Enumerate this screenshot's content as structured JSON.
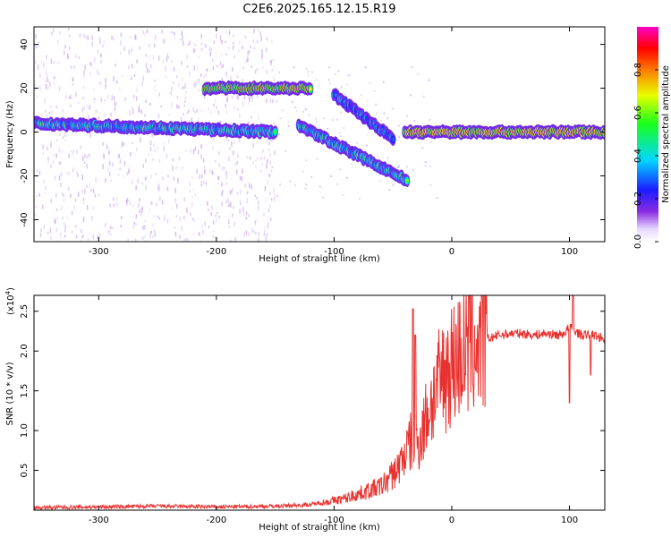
{
  "title": "C2E6.2025.165.12.15.R19",
  "colors": {
    "snr_line": "#e8322f",
    "axis": "#000000",
    "spectrogram_core_dark": "#3a00a8",
    "spectrogram_background_speckle": "#c8a6f0"
  },
  "chart_data": [
    {
      "type": "heatmap",
      "title": "C2E6.2025.165.12.15.R19",
      "xlabel": "Height of straight line (km)",
      "ylabel": "Frequency (Hz)",
      "xlim": [
        -355,
        130
      ],
      "ylim": [
        -50,
        48
      ],
      "xticks": [
        -300,
        -200,
        -100,
        0,
        100
      ],
      "yticks": [
        -40,
        -20,
        0,
        20,
        40
      ],
      "colorbar": {
        "label": "Normalized spectral amplitude",
        "range": [
          0.0,
          1.0
        ],
        "ticks": [
          0.0,
          0.2,
          0.4,
          0.6,
          0.8
        ],
        "colormap": "rainbow (white-violet-blue-cyan-green-yellow-red-magenta)"
      },
      "features": [
        {
          "name": "main carrier",
          "x_range": [
            -355,
            -150
          ],
          "freq": [
            4,
            0
          ],
          "amplitude": 0.5
        },
        {
          "name": "tone ~20 Hz",
          "x_range": [
            -210,
            -120
          ],
          "freq": [
            20,
            20
          ],
          "amplitude": 0.8
        },
        {
          "name": "descending branch",
          "x_range": [
            -130,
            -38
          ],
          "freq": [
            3,
            -22
          ],
          "amplitude": 0.5
        },
        {
          "name": "upper descending branch",
          "x_range": [
            -100,
            -50
          ],
          "freq": [
            17,
            -3
          ],
          "amplitude": 0.4
        },
        {
          "name": "near-zero carrier",
          "x_range": [
            -40,
            130
          ],
          "freq": [
            0,
            0
          ],
          "amplitude": 0.9
        }
      ],
      "grid": false
    },
    {
      "type": "line",
      "xlabel": "Height of straight line (km)",
      "ylabel": "SNR (10 * v/v)",
      "y_multiplier": "(x10",
      "y_multiplier_exponent": "4",
      "y_multiplier_close": ")",
      "xlim": [
        -355,
        130
      ],
      "ylim": [
        0,
        2.7
      ],
      "xticks": [
        -300,
        -200,
        -100,
        0,
        100
      ],
      "yticks": [
        0.5,
        1.0,
        1.5,
        2.0,
        2.5
      ],
      "series": [
        {
          "color": "#e8322f",
          "x": [
            -355,
            -300,
            -250,
            -200,
            -150,
            -120,
            -100,
            -90,
            -80,
            -70,
            -60,
            -50,
            -45,
            -40,
            -35,
            -30,
            -25,
            -20,
            -15,
            -10,
            -5,
            0,
            10,
            20,
            30,
            40,
            50,
            60,
            70,
            80,
            90,
            95,
            100,
            105,
            110,
            115,
            120,
            125,
            130
          ],
          "y": [
            0.03,
            0.04,
            0.05,
            0.04,
            0.05,
            0.07,
            0.12,
            0.15,
            0.2,
            0.25,
            0.3,
            0.45,
            0.55,
            0.7,
            0.85,
            0.8,
            1.0,
            1.25,
            1.45,
            1.6,
            1.75,
            1.85,
            2.0,
            2.1,
            2.15,
            2.2,
            2.22,
            2.22,
            2.2,
            2.22,
            2.2,
            2.22,
            2.3,
            2.25,
            2.2,
            2.2,
            2.2,
            2.18,
            2.15
          ]
        }
      ],
      "spikes": [
        {
          "x": -33,
          "y": 2.53
        },
        {
          "x": -31,
          "y": 2.2
        },
        {
          "x": 100,
          "y": 1.35
        },
        {
          "x": 103,
          "y": 2.7
        },
        {
          "x": 118,
          "y": 1.7
        }
      ],
      "grid": false
    }
  ]
}
